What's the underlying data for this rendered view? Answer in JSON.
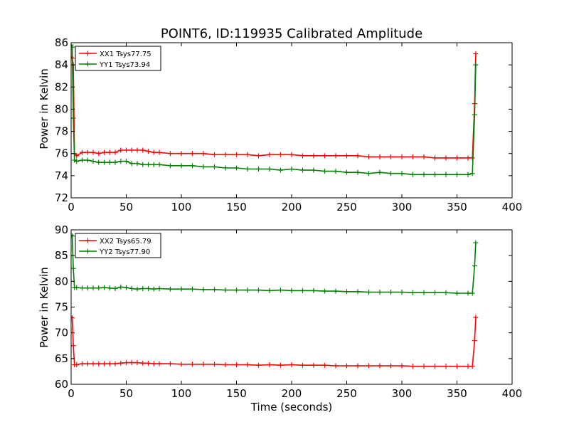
{
  "chart_data": [
    {
      "type": "line",
      "title": "POINT6, ID:119935 Calibrated Amplitude",
      "xlabel": "",
      "ylabel": "Power in Kelvin",
      "xlim": [
        0,
        400
      ],
      "ylim": [
        72,
        86
      ],
      "xticks": [
        0,
        50,
        100,
        150,
        200,
        250,
        300,
        350,
        400
      ],
      "yticks": [
        72,
        74,
        76,
        78,
        80,
        82,
        84,
        86
      ],
      "legend_position": "top-left",
      "series": [
        {
          "name": "XX1 Tsys77.75",
          "color": "#ff0000",
          "marker": "+",
          "x": [
            0,
            1,
            2,
            3,
            5,
            10,
            15,
            20,
            25,
            30,
            35,
            40,
            45,
            50,
            55,
            60,
            65,
            70,
            75,
            80,
            90,
            100,
            110,
            120,
            130,
            140,
            150,
            160,
            170,
            180,
            190,
            200,
            210,
            220,
            230,
            240,
            250,
            260,
            270,
            280,
            290,
            300,
            310,
            320,
            330,
            340,
            350,
            360,
            364,
            366,
            367
          ],
          "y": [
            84.7,
            84.6,
            84.0,
            76.0,
            75.8,
            76.1,
            76.1,
            76.1,
            76.0,
            76.1,
            76.1,
            76.1,
            76.3,
            76.3,
            76.3,
            76.3,
            76.3,
            76.2,
            76.1,
            76.1,
            76.0,
            76.0,
            76.0,
            76.0,
            75.9,
            75.9,
            75.9,
            75.9,
            75.8,
            75.9,
            75.9,
            75.9,
            75.8,
            75.8,
            75.8,
            75.8,
            75.8,
            75.8,
            75.7,
            75.7,
            75.7,
            75.7,
            75.7,
            75.7,
            75.6,
            75.6,
            75.6,
            75.6,
            75.6,
            80.5,
            85.0
          ]
        },
        {
          "name": "YY1 Tsys73.94",
          "color": "#008000",
          "marker": "+",
          "x": [
            0,
            1,
            2,
            3,
            5,
            10,
            15,
            20,
            25,
            30,
            35,
            40,
            45,
            50,
            55,
            60,
            65,
            70,
            75,
            80,
            90,
            100,
            110,
            120,
            130,
            140,
            150,
            160,
            170,
            180,
            190,
            200,
            210,
            220,
            230,
            240,
            250,
            260,
            270,
            280,
            290,
            300,
            310,
            320,
            330,
            340,
            350,
            360,
            364,
            366,
            367
          ],
          "y": [
            85.8,
            85.6,
            79.2,
            75.4,
            75.3,
            75.4,
            75.4,
            75.3,
            75.2,
            75.2,
            75.2,
            75.2,
            75.3,
            75.3,
            75.1,
            75.1,
            75.0,
            75.0,
            75.0,
            75.0,
            74.9,
            74.9,
            74.9,
            74.8,
            74.8,
            74.7,
            74.7,
            74.6,
            74.6,
            74.6,
            74.5,
            74.6,
            74.5,
            74.5,
            74.4,
            74.4,
            74.3,
            74.3,
            74.2,
            74.3,
            74.2,
            74.2,
            74.1,
            74.1,
            74.1,
            74.1,
            74.1,
            74.1,
            74.2,
            79.5,
            84.0
          ]
        }
      ]
    },
    {
      "type": "line",
      "title": "",
      "xlabel": "Time (seconds)",
      "ylabel": "Power in Kelvin",
      "xlim": [
        0,
        400
      ],
      "ylim": [
        60,
        90
      ],
      "xticks": [
        0,
        50,
        100,
        150,
        200,
        250,
        300,
        350,
        400
      ],
      "yticks": [
        60,
        65,
        70,
        75,
        80,
        85,
        90
      ],
      "legend_position": "top-left",
      "series": [
        {
          "name": "XX2 Tsys65.79",
          "color": "#ff0000",
          "marker": "+",
          "x": [
            0,
            1,
            2,
            3,
            5,
            10,
            15,
            20,
            25,
            30,
            35,
            40,
            45,
            50,
            55,
            60,
            65,
            70,
            75,
            80,
            90,
            100,
            110,
            120,
            130,
            140,
            150,
            160,
            170,
            180,
            190,
            200,
            210,
            220,
            230,
            240,
            250,
            260,
            270,
            280,
            290,
            300,
            310,
            320,
            330,
            340,
            350,
            360,
            364,
            366,
            367
          ],
          "y": [
            73.0,
            72.9,
            67.5,
            63.8,
            63.8,
            64.0,
            64.0,
            64.0,
            64.0,
            64.0,
            64.0,
            64.0,
            64.1,
            64.2,
            64.2,
            64.2,
            64.1,
            64.1,
            64.0,
            64.0,
            64.0,
            63.9,
            63.9,
            63.9,
            63.9,
            63.8,
            63.8,
            63.8,
            63.7,
            63.8,
            63.7,
            63.8,
            63.7,
            63.7,
            63.7,
            63.6,
            63.6,
            63.6,
            63.6,
            63.6,
            63.6,
            63.6,
            63.5,
            63.5,
            63.5,
            63.5,
            63.5,
            63.5,
            63.5,
            68.5,
            73.0
          ]
        },
        {
          "name": "YY2 Tsys77.90",
          "color": "#008000",
          "marker": "+",
          "x": [
            0,
            1,
            2,
            3,
            5,
            10,
            15,
            20,
            25,
            30,
            35,
            40,
            45,
            50,
            55,
            60,
            65,
            70,
            75,
            80,
            90,
            100,
            110,
            120,
            130,
            140,
            150,
            160,
            170,
            180,
            190,
            200,
            210,
            220,
            230,
            240,
            250,
            260,
            270,
            280,
            290,
            300,
            310,
            320,
            330,
            340,
            350,
            360,
            364,
            366,
            367
          ],
          "y": [
            89.0,
            88.8,
            82.5,
            78.8,
            78.8,
            78.7,
            78.7,
            78.7,
            78.7,
            78.8,
            78.7,
            78.6,
            78.9,
            78.8,
            78.6,
            78.5,
            78.6,
            78.6,
            78.5,
            78.6,
            78.5,
            78.5,
            78.5,
            78.4,
            78.4,
            78.3,
            78.3,
            78.3,
            78.3,
            78.2,
            78.3,
            78.2,
            78.2,
            78.2,
            78.1,
            78.1,
            78.0,
            78.0,
            77.9,
            77.9,
            77.9,
            77.9,
            77.8,
            77.8,
            77.8,
            77.8,
            77.7,
            77.7,
            77.7,
            83.0,
            87.5
          ]
        }
      ]
    }
  ]
}
